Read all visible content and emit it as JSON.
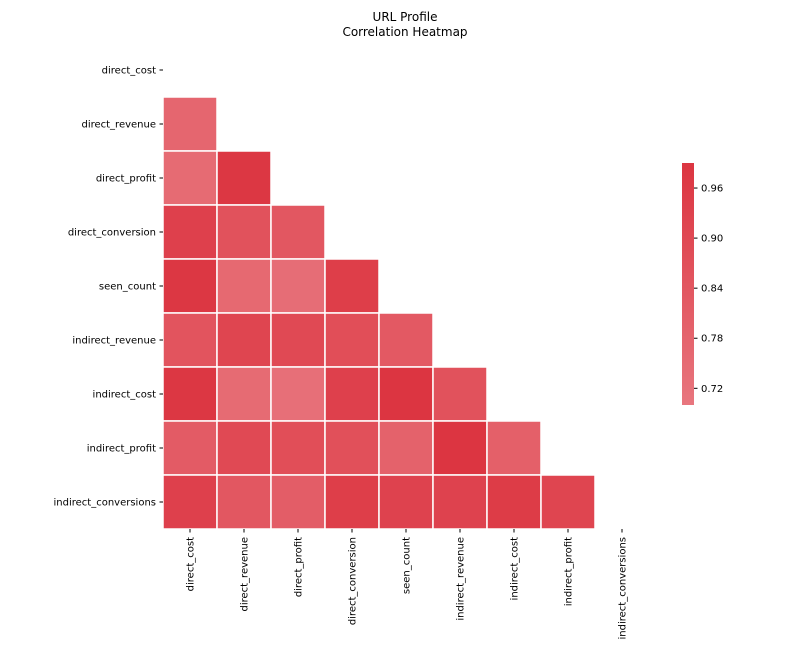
{
  "chart_data": {
    "type": "heatmap",
    "title_lines": [
      "URL Profile",
      "Correlation Heatmap"
    ],
    "row_labels": [
      "direct_cost",
      "direct_revenue",
      "direct_profit",
      "direct_conversion",
      "seen_count",
      "indirect_revenue",
      "indirect_cost",
      "indirect_profit",
      "indirect_conversions"
    ],
    "col_labels": [
      "direct_cost",
      "direct_revenue",
      "direct_profit",
      "direct_conversion",
      "seen_count",
      "indirect_revenue",
      "indirect_cost",
      "indirect_profit",
      "indirect_conversions"
    ],
    "mask": "upper-triangle-including-diagonal",
    "values": [
      [
        null,
        null,
        null,
        null,
        null,
        null,
        null,
        null,
        null
      ],
      [
        0.77,
        null,
        null,
        null,
        null,
        null,
        null,
        null,
        null
      ],
      [
        0.75,
        0.98,
        null,
        null,
        null,
        null,
        null,
        null,
        null
      ],
      [
        0.94,
        0.86,
        0.84,
        null,
        null,
        null,
        null,
        null,
        null
      ],
      [
        0.98,
        0.76,
        0.74,
        0.95,
        null,
        null,
        null,
        null,
        null
      ],
      [
        0.85,
        0.92,
        0.9,
        0.88,
        0.83,
        null,
        null,
        null,
        null
      ],
      [
        0.98,
        0.75,
        0.73,
        0.94,
        0.99,
        0.86,
        null,
        null,
        null
      ],
      [
        0.82,
        0.9,
        0.88,
        0.87,
        0.79,
        0.99,
        0.8,
        null,
        null
      ],
      [
        0.94,
        0.84,
        0.81,
        0.95,
        0.93,
        0.93,
        0.96,
        0.92,
        null
      ]
    ],
    "colorbar": {
      "ticks": [
        "0.72",
        "0.78",
        "0.84",
        "0.90",
        "0.96"
      ],
      "vmin": 0.7,
      "vmax": 0.99,
      "color_low": "#e8767e",
      "color_high": "#dc3541"
    },
    "grid_line_color": "#ffffff"
  }
}
